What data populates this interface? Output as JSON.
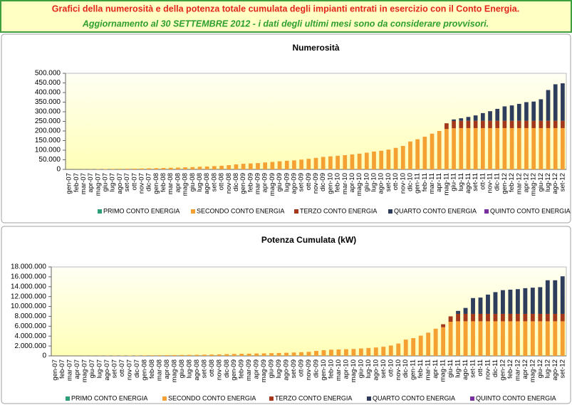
{
  "header": {
    "title": "Grafici della numerosità e della potenza totale cumulata degli impianti entrati in esercizio con il Conto Energia.",
    "subtitle": "Aggiornamento al 30 SETTEMBRE 2012 - i dati degli ultimi mesi sono da considerare provvisori."
  },
  "chart_data": [
    {
      "type": "bar",
      "stacked": true,
      "title": "Numerosità",
      "grid": false,
      "legend": "bottom",
      "categories": [
        "gen-07",
        "feb-07",
        "mar-07",
        "apr-07",
        "mag-07",
        "giu-07",
        "lug-07",
        "ago-07",
        "set-07",
        "ott-07",
        "nov-07",
        "dic-07",
        "gen-08",
        "feb-08",
        "mar-08",
        "apr-08",
        "mag-08",
        "giu-08",
        "lug-08",
        "ago-08",
        "set-08",
        "ott-08",
        "nov-08",
        "dic-08",
        "gen-09",
        "feb-09",
        "mar-09",
        "apr-09",
        "mag-09",
        "giu-09",
        "lug-09",
        "ago-09",
        "set-09",
        "ott-09",
        "nov-09",
        "dic-09",
        "gen-10",
        "feb-10",
        "mar-10",
        "apr-10",
        "mag-10",
        "giu-10",
        "lug-10",
        "ago-10",
        "set-10",
        "ott-10",
        "nov-10",
        "dic-10",
        "gen-11",
        "feb-11",
        "mar-11",
        "apr-11",
        "mag-11",
        "giu-11",
        "lug-11",
        "ago-11",
        "set-11",
        "ott-11",
        "nov-11",
        "dic-11",
        "gen-12",
        "feb-12",
        "mar-12",
        "apr-12",
        "mag-12",
        "giu-12",
        "lug-12",
        "ago-12",
        "set-12"
      ],
      "ylim": [
        0,
        500000
      ],
      "yticks": [
        0,
        {
          "value": 50000,
          "label": "50.000"
        },
        {
          "value": 100000,
          "label": "100.000"
        },
        {
          "value": 150000,
          "label": "150.000"
        },
        {
          "value": 200000,
          "label": "200.000"
        },
        {
          "value": 250000,
          "label": "250.000"
        },
        {
          "value": 300000,
          "label": "300.000"
        },
        {
          "value": 350000,
          "label": "350.000"
        },
        {
          "value": 400000,
          "label": "400.000"
        },
        {
          "value": 450000,
          "label": "450.000"
        },
        {
          "value": 500000,
          "label": "500.000"
        }
      ],
      "series": [
        {
          "name": "PRIMO CONTO ENERGIA",
          "color": "#2e9e78",
          "values": [
            0,
            0,
            0,
            0,
            0,
            0,
            0,
            0,
            0,
            0,
            0,
            0,
            0,
            0,
            0,
            0,
            0,
            0,
            0,
            0,
            0,
            0,
            0,
            0,
            0,
            0,
            0,
            0,
            0,
            0,
            0,
            0,
            0,
            0,
            0,
            0,
            0,
            0,
            0,
            0,
            0,
            0,
            0,
            0,
            0,
            0,
            0,
            0,
            0,
            0,
            0,
            0,
            0,
            0,
            0,
            0,
            0,
            0,
            0,
            0,
            0,
            0,
            0,
            0,
            0,
            0,
            0,
            0,
            0
          ]
        },
        {
          "name": "SECONDO CONTO ENERGIA",
          "color": "#f5a033",
          "values": [
            100,
            300,
            600,
            1000,
            1500,
            2000,
            2500,
            3000,
            3500,
            4000,
            4500,
            5500,
            6500,
            7500,
            8500,
            9500,
            10500,
            12000,
            14000,
            15000,
            17000,
            19000,
            22000,
            26000,
            29000,
            31000,
            33000,
            36000,
            39000,
            42000,
            45000,
            47000,
            51000,
            55000,
            60000,
            65000,
            68000,
            71000,
            74000,
            78000,
            82000,
            87000,
            93000,
            97000,
            103000,
            112000,
            122000,
            145000,
            157000,
            170000,
            186000,
            200000,
            210000,
            214000,
            215000,
            215000,
            215000,
            215000,
            215000,
            215000,
            215000,
            215000,
            215000,
            215000,
            215000,
            215000,
            215000,
            215000,
            215000
          ]
        },
        {
          "name": "TERZO CONTO ENERGIA",
          "color": "#a3381c",
          "values": [
            0,
            0,
            0,
            0,
            0,
            0,
            0,
            0,
            0,
            0,
            0,
            0,
            0,
            0,
            0,
            0,
            0,
            0,
            0,
            0,
            0,
            0,
            0,
            0,
            0,
            0,
            0,
            0,
            0,
            0,
            0,
            0,
            0,
            0,
            0,
            0,
            0,
            0,
            0,
            0,
            0,
            0,
            0,
            0,
            0,
            0,
            0,
            0,
            0,
            0,
            0,
            0,
            30000,
            38000,
            38000,
            38000,
            38000,
            38000,
            38000,
            38000,
            38000,
            38000,
            38000,
            38000,
            38000,
            38000,
            38000,
            38000,
            38000
          ]
        },
        {
          "name": "QUARTO CONTO ENERGIA",
          "color": "#2f3d5c",
          "values": [
            0,
            0,
            0,
            0,
            0,
            0,
            0,
            0,
            0,
            0,
            0,
            0,
            0,
            0,
            0,
            0,
            0,
            0,
            0,
            0,
            0,
            0,
            0,
            0,
            0,
            0,
            0,
            0,
            0,
            0,
            0,
            0,
            0,
            0,
            0,
            0,
            0,
            0,
            0,
            0,
            0,
            0,
            0,
            0,
            0,
            0,
            0,
            0,
            0,
            0,
            0,
            0,
            0,
            8000,
            13000,
            20000,
            28000,
            40000,
            50000,
            62000,
            75000,
            80000,
            88000,
            97000,
            100000,
            112000,
            160000,
            190000,
            195000
          ]
        },
        {
          "name": "QUINTO CONTO ENERGIA",
          "color": "#7a2f9e",
          "values": [
            0,
            0,
            0,
            0,
            0,
            0,
            0,
            0,
            0,
            0,
            0,
            0,
            0,
            0,
            0,
            0,
            0,
            0,
            0,
            0,
            0,
            0,
            0,
            0,
            0,
            0,
            0,
            0,
            0,
            0,
            0,
            0,
            0,
            0,
            0,
            0,
            0,
            0,
            0,
            0,
            0,
            0,
            0,
            0,
            0,
            0,
            0,
            0,
            0,
            0,
            0,
            0,
            0,
            0,
            0,
            0,
            0,
            0,
            0,
            0,
            0,
            0,
            0,
            0,
            0,
            0,
            0,
            0,
            0
          ]
        }
      ]
    },
    {
      "type": "bar",
      "stacked": true,
      "title": "Potenza Cumulata (kW)",
      "grid": false,
      "legend": "bottom",
      "categories": [
        "gen-07",
        "feb-07",
        "mar-07",
        "apr-07",
        "mag-07",
        "giu-07",
        "lug-07",
        "ago-07",
        "set-07",
        "ott-07",
        "nov-07",
        "dic-07",
        "gen-08",
        "feb-08",
        "mar-08",
        "apr-08",
        "mag-08",
        "giu-08",
        "lug-08",
        "ago-08",
        "set-08",
        "ott-08",
        "nov-08",
        "dic-08",
        "gen-09",
        "feb-09",
        "mar-09",
        "apr-09",
        "mag-09",
        "giu-09",
        "lug-09",
        "ago-09",
        "set-09",
        "ott-09",
        "nov-09",
        "dic-09",
        "gen-10",
        "feb-10",
        "mar-10",
        "apr-10",
        "mag-10",
        "giu-10",
        "lug-10",
        "ago-10",
        "set-10",
        "ott-10",
        "nov-10",
        "dic-10",
        "gen-11",
        "feb-11",
        "mar-11",
        "apr-11",
        "mag-11",
        "giu-11",
        "lug-11",
        "ago-11",
        "set-11",
        "ott-11",
        "nov-11",
        "dic-11",
        "gen-12",
        "feb-12",
        "mar-12",
        "apr-12",
        "mag-12",
        "giu-12",
        "lug-12",
        "ago-12",
        "set-12"
      ],
      "ylim": [
        0,
        18000000
      ],
      "yticks": [
        0,
        {
          "value": 2000000,
          "label": "2.000.000"
        },
        {
          "value": 4000000,
          "label": "4.000.000"
        },
        {
          "value": 6000000,
          "label": "6.000.000"
        },
        {
          "value": 8000000,
          "label": "8.000.000"
        },
        {
          "value": 10000000,
          "label": "10.000.000"
        },
        {
          "value": 12000000,
          "label": "12.000.000"
        },
        {
          "value": 14000000,
          "label": "14.000.000"
        },
        {
          "value": 16000000,
          "label": "16.000.000"
        },
        {
          "value": 18000000,
          "label": "18.000.000"
        }
      ],
      "series": [
        {
          "name": "PRIMO CONTO ENERGIA",
          "color": "#2e9e78",
          "values": [
            0,
            0,
            0,
            0,
            0,
            0,
            0,
            0,
            0,
            0,
            0,
            0,
            0,
            0,
            0,
            0,
            0,
            0,
            0,
            0,
            0,
            0,
            0,
            0,
            0,
            0,
            0,
            0,
            0,
            0,
            0,
            0,
            0,
            0,
            0,
            0,
            0,
            0,
            0,
            0,
            0,
            0,
            0,
            0,
            0,
            0,
            0,
            0,
            0,
            0,
            0,
            0,
            0,
            0,
            0,
            0,
            0,
            0,
            0,
            0,
            0,
            0,
            0,
            0,
            0,
            0,
            0,
            0,
            0
          ]
        },
        {
          "name": "SECONDO CONTO ENERGIA",
          "color": "#f5a033",
          "values": [
            2000,
            5000,
            10000,
            15000,
            20000,
            27000,
            35000,
            42000,
            50000,
            58000,
            68000,
            85000,
            100000,
            115000,
            130000,
            145000,
            160000,
            180000,
            200000,
            220000,
            240000,
            265000,
            300000,
            350000,
            390000,
            420000,
            450000,
            480000,
            510000,
            550000,
            590000,
            630000,
            680000,
            740000,
            820000,
            1000000,
            1150000,
            1250000,
            1300000,
            1350000,
            1400000,
            1500000,
            1600000,
            1700000,
            1850000,
            2100000,
            2500000,
            3300000,
            3600000,
            4100000,
            4700000,
            5500000,
            5800000,
            6900000,
            7000000,
            7000000,
            7000000,
            7000000,
            7000000,
            7000000,
            7000000,
            7000000,
            7000000,
            7000000,
            7000000,
            7000000,
            7000000,
            7000000,
            7000000
          ]
        },
        {
          "name": "TERZO CONTO ENERGIA",
          "color": "#a3381c",
          "values": [
            0,
            0,
            0,
            0,
            0,
            0,
            0,
            0,
            0,
            0,
            0,
            0,
            0,
            0,
            0,
            0,
            0,
            0,
            0,
            0,
            0,
            0,
            0,
            0,
            0,
            0,
            0,
            0,
            0,
            0,
            0,
            0,
            0,
            0,
            0,
            0,
            0,
            0,
            0,
            0,
            0,
            0,
            0,
            0,
            0,
            0,
            0,
            0,
            0,
            0,
            0,
            0,
            600000,
            1100000,
            1500000,
            1500000,
            1500000,
            1500000,
            1500000,
            1500000,
            1500000,
            1500000,
            1500000,
            1500000,
            1500000,
            1500000,
            1500000,
            1500000,
            1500000
          ]
        },
        {
          "name": "QUARTO CONTO ENERGIA",
          "color": "#2f3d5c",
          "values": [
            0,
            0,
            0,
            0,
            0,
            0,
            0,
            0,
            0,
            0,
            0,
            0,
            0,
            0,
            0,
            0,
            0,
            0,
            0,
            0,
            0,
            0,
            0,
            0,
            0,
            0,
            0,
            0,
            0,
            0,
            0,
            0,
            0,
            0,
            0,
            0,
            0,
            0,
            0,
            0,
            0,
            0,
            0,
            0,
            0,
            0,
            0,
            0,
            0,
            0,
            0,
            0,
            0,
            0,
            600000,
            1200000,
            3200000,
            3300000,
            3900000,
            4400000,
            4800000,
            4900000,
            5000000,
            5200000,
            5300000,
            5400000,
            6800000,
            6800000,
            7600000
          ]
        },
        {
          "name": "QUINTO CONTO ENERGIA",
          "color": "#7a2f9e",
          "values": [
            0,
            0,
            0,
            0,
            0,
            0,
            0,
            0,
            0,
            0,
            0,
            0,
            0,
            0,
            0,
            0,
            0,
            0,
            0,
            0,
            0,
            0,
            0,
            0,
            0,
            0,
            0,
            0,
            0,
            0,
            0,
            0,
            0,
            0,
            0,
            0,
            0,
            0,
            0,
            0,
            0,
            0,
            0,
            0,
            0,
            0,
            0,
            0,
            0,
            0,
            0,
            0,
            0,
            0,
            0,
            0,
            0,
            0,
            0,
            0,
            0,
            0,
            0,
            0,
            0,
            0,
            0,
            0,
            0
          ]
        }
      ]
    }
  ]
}
